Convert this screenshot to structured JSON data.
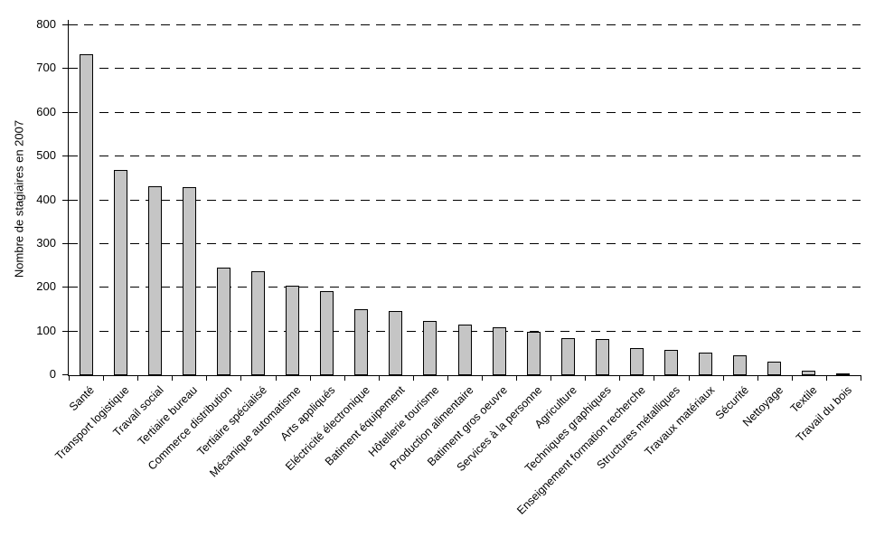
{
  "chart_data": {
    "type": "bar",
    "ylabel": "Nombre de stagiaires en 2007",
    "ylim": [
      0,
      800
    ],
    "ytick_step": 100,
    "yticks": [
      0,
      100,
      200,
      300,
      400,
      500,
      600,
      700,
      800
    ],
    "grid": "horizontal-dashed",
    "legend": "none",
    "bar_color": "#C5C5C5",
    "bar_border_color": "#000000",
    "categories": [
      "Santé",
      "Transport logistique",
      "Travail social",
      "Tertiaire bureau",
      "Commerce distribution",
      "Tertiaire spécialisé",
      "Mécanique automatisme",
      "Arts appliqués",
      "Eléctricité électronique",
      "Batiment équipement",
      "Hôtellerie tourisme",
      "Production alimentaire",
      "Batiment gros oeuvre",
      "Services à la personne",
      "Agriculture",
      "Techniques graphiques",
      "Enseignement formation recherche",
      "Structures métalliques",
      "Travaux matériaux",
      "Sécurité",
      "Nettoyage",
      "Textile",
      "Travail du bois"
    ],
    "values": [
      733,
      470,
      433,
      431,
      247,
      238,
      205,
      192,
      150,
      146,
      123,
      115,
      109,
      100,
      85,
      83,
      61,
      58,
      51,
      45,
      30,
      11,
      2
    ]
  }
}
